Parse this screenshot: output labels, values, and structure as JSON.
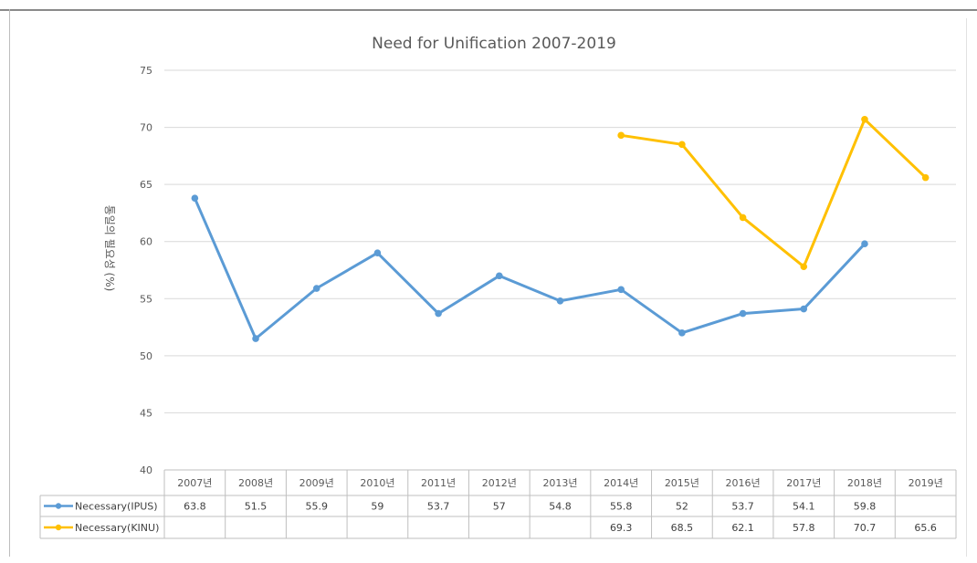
{
  "chart_data": {
    "type": "line",
    "title": "Need for Unification 2007-2019",
    "ylabel": "통일의 필요성 (%)",
    "xlabel": "",
    "ylim": [
      40,
      75
    ],
    "yticks": [
      40,
      45,
      50,
      55,
      60,
      65,
      70,
      75
    ],
    "categories": [
      "2007년",
      "2008년",
      "2009년",
      "2010년",
      "2011년",
      "2012년",
      "2013년",
      "2014년",
      "2015년",
      "2016년",
      "2017년",
      "2018년",
      "2019년"
    ],
    "grid": true,
    "legend_placement": "data-table-left",
    "series": [
      {
        "name": "Necessary(IPUS)",
        "color": "#5b9bd5",
        "values": [
          63.8,
          51.5,
          55.9,
          59,
          53.7,
          57,
          54.8,
          55.8,
          52,
          53.7,
          54.1,
          59.8,
          null
        ]
      },
      {
        "name": "Necessary(KINU)",
        "color": "#ffc000",
        "values": [
          null,
          null,
          null,
          null,
          null,
          null,
          null,
          69.3,
          68.5,
          62.1,
          57.8,
          70.7,
          65.6
        ]
      }
    ]
  }
}
